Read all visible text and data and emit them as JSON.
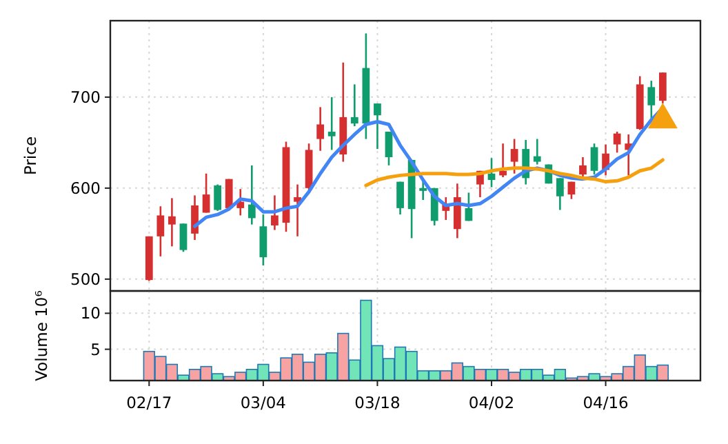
{
  "chart_data": [
    {
      "type": "candlestick",
      "ylabel": "Price",
      "categories": [
        null,
        null,
        null,
        null,
        null,
        null,
        null,
        null,
        null,
        null,
        null,
        null,
        null,
        null,
        null,
        null,
        null,
        null,
        null,
        null,
        null,
        null,
        null,
        null,
        null,
        null,
        null,
        null,
        null,
        null,
        null,
        null,
        null,
        null,
        null,
        null,
        null,
        null,
        null,
        null,
        null,
        null,
        null,
        null,
        null,
        null
      ],
      "ohlc": [
        [
          499,
          547,
          498,
          547
        ],
        [
          547,
          580,
          525,
          570
        ],
        [
          560,
          589,
          536,
          569
        ],
        [
          561,
          561,
          530,
          532
        ],
        [
          550,
          592,
          543,
          581
        ],
        [
          573,
          616,
          573,
          593
        ],
        [
          603,
          604,
          575,
          576
        ],
        [
          578,
          610,
          578,
          610
        ],
        [
          578,
          599,
          570,
          585
        ],
        [
          582,
          625,
          560,
          567
        ],
        [
          558,
          571,
          515,
          524
        ],
        [
          559,
          592,
          554,
          570
        ],
        [
          562,
          651,
          552,
          645
        ],
        [
          585,
          604,
          547,
          590
        ],
        [
          600,
          649,
          598,
          642
        ],
        [
          654,
          689,
          641,
          670
        ],
        [
          662,
          700,
          642,
          657
        ],
        [
          637,
          738,
          629,
          678
        ],
        [
          678,
          714,
          668,
          671
        ],
        [
          732,
          770,
          654,
          671
        ],
        [
          693,
          693,
          643,
          680
        ],
        [
          662,
          662,
          625,
          634
        ],
        [
          607,
          607,
          571,
          578
        ],
        [
          631,
          631,
          545,
          577
        ],
        [
          600,
          611,
          587,
          597
        ],
        [
          600,
          600,
          559,
          564
        ],
        [
          575,
          590,
          565,
          583
        ],
        [
          555,
          605,
          545,
          590
        ],
        [
          578,
          595,
          564,
          564
        ],
        [
          604,
          619,
          590,
          619
        ],
        [
          616,
          633,
          601,
          609
        ],
        [
          614,
          649,
          612,
          619
        ],
        [
          629,
          654,
          616,
          643
        ],
        [
          643,
          653,
          604,
          611
        ],
        [
          635,
          654,
          626,
          629
        ],
        [
          626,
          626,
          605,
          605
        ],
        [
          611,
          611,
          576,
          591
        ],
        [
          593,
          607,
          588,
          607
        ],
        [
          615,
          634,
          609,
          625
        ],
        [
          645,
          649,
          615,
          619
        ],
        [
          620,
          648,
          614,
          638
        ],
        [
          648,
          662,
          639,
          660
        ],
        [
          642,
          659,
          614,
          649
        ],
        [
          665,
          723,
          664,
          714
        ],
        [
          711,
          718,
          675,
          691
        ],
        [
          696,
          727,
          693,
          727
        ]
      ],
      "colors": [
        "#d62f2f",
        "#d62f2f",
        "#d62f2f",
        "#0f9d6e",
        "#d62f2f",
        "#d62f2f",
        "#0f9d6e",
        "#d62f2f",
        "#d62f2f",
        "#0f9d6e",
        "#0f9d6e",
        "#d62f2f",
        "#d62f2f",
        "#d62f2f",
        "#d62f2f",
        "#d62f2f",
        "#0f9d6e",
        "#d62f2f",
        "#0f9d6e",
        "#0f9d6e",
        "#0f9d6e",
        "#0f9d6e",
        "#0f9d6e",
        "#0f9d6e",
        "#0f9d6e",
        "#0f9d6e",
        "#d62f2f",
        "#d62f2f",
        "#0f9d6e",
        "#d62f2f",
        "#0f9d6e",
        "#d62f2f",
        "#d62f2f",
        "#0f9d6e",
        "#0f9d6e",
        "#0f9d6e",
        "#0f9d6e",
        "#d62f2f",
        "#d62f2f",
        "#0f9d6e",
        "#d62f2f",
        "#d62f2f",
        "#d62f2f",
        "#d62f2f",
        "#0f9d6e",
        "#d62f2f"
      ],
      "series": [
        {
          "type": "line",
          "color": "#4285f4",
          "values": [
            null,
            null,
            null,
            null,
            558,
            568,
            571,
            577,
            588,
            586,
            574,
            574,
            578,
            580,
            596,
            616,
            634,
            647,
            659,
            670,
            673,
            670,
            647,
            629,
            609,
            591,
            581,
            583,
            581,
            583,
            591,
            601,
            611,
            619,
            622,
            619,
            614,
            611,
            610,
            612,
            621,
            632,
            639,
            659,
            675,
            688
          ]
        },
        {
          "type": "line",
          "color": "#f5a00f",
          "values": [
            null,
            null,
            null,
            null,
            null,
            null,
            null,
            null,
            null,
            null,
            null,
            null,
            null,
            null,
            null,
            null,
            null,
            null,
            null,
            603,
            609,
            612,
            614,
            615,
            616,
            616,
            616,
            615,
            615,
            616,
            619,
            621,
            622,
            622,
            621,
            619,
            616,
            614,
            611,
            610,
            607,
            608,
            612,
            619,
            622,
            631
          ]
        },
        {
          "type": "scatter",
          "color": "#f5a00f",
          "marker": "triangle",
          "values": [
            null,
            null,
            null,
            null,
            null,
            null,
            null,
            null,
            null,
            null,
            null,
            null,
            null,
            null,
            null,
            null,
            null,
            null,
            null,
            null,
            null,
            null,
            null,
            null,
            null,
            null,
            null,
            null,
            null,
            null,
            null,
            null,
            null,
            null,
            null,
            null,
            null,
            null,
            null,
            null,
            null,
            null,
            null,
            null,
            null,
            675
          ]
        }
      ],
      "ylim": [
        487,
        784
      ],
      "yticks": [
        500,
        600,
        700
      ],
      "grid": true
    },
    {
      "type": "bar",
      "ylabel": "Volume  10⁶",
      "categories": [
        "02/17",
        null,
        null,
        null,
        null,
        null,
        null,
        null,
        null,
        null,
        "03/04",
        null,
        null,
        null,
        null,
        null,
        null,
        null,
        null,
        null,
        "03/18",
        null,
        null,
        null,
        null,
        null,
        null,
        null,
        null,
        null,
        "04/02",
        null,
        null,
        null,
        null,
        null,
        null,
        null,
        null,
        null,
        "04/16",
        null,
        null,
        null,
        null,
        null
      ],
      "values": [
        4.7,
        4.0,
        2.9,
        1.4,
        2.2,
        2.6,
        1.6,
        1.2,
        1.8,
        2.2,
        2.9,
        1.8,
        3.8,
        4.3,
        3.2,
        4.3,
        4.5,
        7.2,
        3.5,
        11.8,
        5.5,
        3.7,
        5.3,
        4.7,
        2.0,
        2.0,
        2.0,
        3.1,
        2.6,
        2.2,
        2.2,
        2.2,
        1.8,
        2.2,
        2.2,
        1.4,
        2.2,
        1.0,
        1.2,
        1.6,
        1.2,
        1.6,
        2.6,
        4.2,
        2.6,
        2.8
      ],
      "colors": [
        "#f7a3a3",
        "#f7a3a3",
        "#f7a3a3",
        "#72e5b8",
        "#f7a3a3",
        "#f7a3a3",
        "#72e5b8",
        "#f7a3a3",
        "#f7a3a3",
        "#72e5b8",
        "#72e5b8",
        "#f7a3a3",
        "#f7a3a3",
        "#f7a3a3",
        "#f7a3a3",
        "#f7a3a3",
        "#72e5b8",
        "#f7a3a3",
        "#72e5b8",
        "#72e5b8",
        "#72e5b8",
        "#72e5b8",
        "#72e5b8",
        "#72e5b8",
        "#72e5b8",
        "#72e5b8",
        "#f7a3a3",
        "#f7a3a3",
        "#72e5b8",
        "#f7a3a3",
        "#72e5b8",
        "#f7a3a3",
        "#f7a3a3",
        "#72e5b8",
        "#72e5b8",
        "#72e5b8",
        "#72e5b8",
        "#f7a3a3",
        "#f7a3a3",
        "#72e5b8",
        "#f7a3a3",
        "#f7a3a3",
        "#f7a3a3",
        "#f7a3a3",
        "#72e5b8",
        "#f7a3a3"
      ],
      "ylim": [
        0.65,
        13.1
      ],
      "yticks": [
        5,
        10
      ],
      "grid": true
    }
  ]
}
